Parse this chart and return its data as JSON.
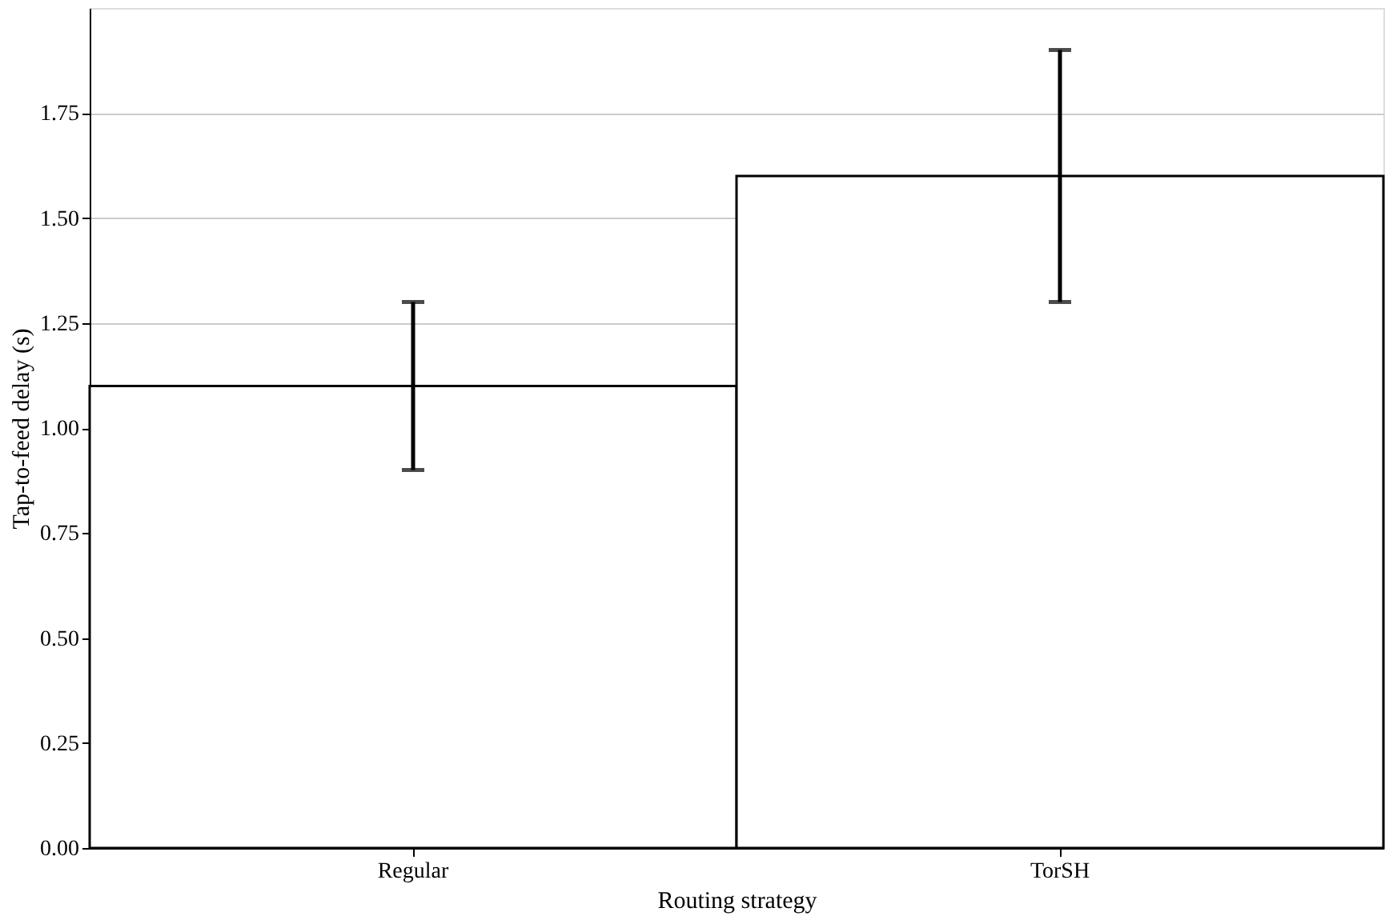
{
  "chart_data": {
    "type": "bar",
    "xlabel": "Routing strategy",
    "ylabel": "Tap-to-feed delay (s)",
    "categories": [
      "Regular",
      "TorSH"
    ],
    "values": [
      1.1,
      1.6
    ],
    "errors": [
      0.2,
      0.3
    ],
    "colors": [
      "#ffffff",
      "#ffffff"
    ],
    "ylim": [
      0,
      2.0
    ],
    "yticks": [
      {
        "value": 0,
        "label": "0.00"
      },
      {
        "value": 0.25,
        "label": "0.25"
      },
      {
        "value": 0.5,
        "label": "0.50"
      },
      {
        "value": 0.75,
        "label": "0.75"
      },
      {
        "value": 1.0,
        "label": "1.00"
      },
      {
        "value": 1.25,
        "label": "1.25"
      },
      {
        "value": 1.5,
        "label": "1.50"
      },
      {
        "value": 1.75,
        "label": "1.75"
      }
    ],
    "grid": "y"
  }
}
